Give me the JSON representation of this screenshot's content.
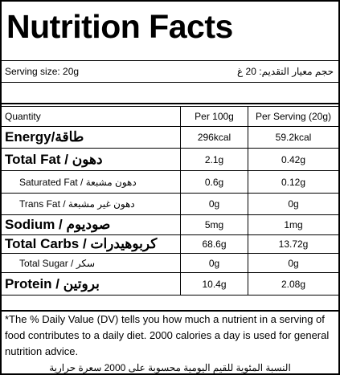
{
  "title": "Nutrition Facts",
  "serving": {
    "english": "Serving size: 20g",
    "arabic": "حجم معيار التقديم: 20 غ"
  },
  "table": {
    "header": [
      "Quantity",
      "Per 100g",
      "Per Serving (20g)"
    ],
    "rows": [
      [
        "Energy/طاقة",
        "296kcal",
        "59.2kcal"
      ],
      [
        "Total Fat / دهون",
        "2.1g",
        "0.42g"
      ],
      [
        "Saturated Fat / دهون مشبعة",
        "0.6g",
        "0.12g"
      ],
      [
        "Trans Fat / دهون غير مشبعة",
        "0g",
        "0g"
      ],
      [
        "Sodium / صوديوم",
        "5mg",
        "1mg"
      ],
      [
        "Total Carbs / كربوهيدرات",
        "68.6g",
        "13.72g"
      ],
      [
        "Total Sugar / سكر",
        "0g",
        "0g"
      ],
      [
        "Protein / بروتين",
        "10.4g",
        "2.08g"
      ]
    ]
  },
  "footnote": {
    "english": "*The % Daily Value (DV) tells you how much a nutrient in a serving of food contributes to a daily diet. 2000 calories a day is used for general nutrition advice.",
    "arabic": "النسبة المئوية للقيم اليومية محسوبة على 2000 سعرة حرارية"
  }
}
